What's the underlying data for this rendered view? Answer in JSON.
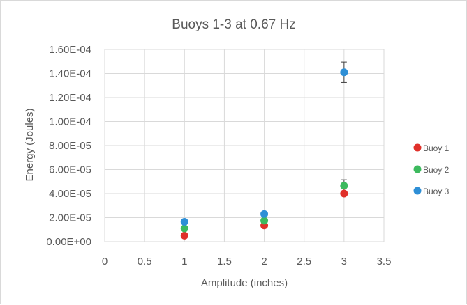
{
  "chart_data": {
    "type": "scatter",
    "title": "Buoys 1-3 at 0.67 Hz",
    "xlabel": "Amplitude (inches)",
    "ylabel": "Energy (Joules)",
    "xlim": [
      0,
      3.5
    ],
    "ylim": [
      0,
      0.00016
    ],
    "x_ticks": [
      "0",
      "0.5",
      "1",
      "1.5",
      "2",
      "2.5",
      "3",
      "3.5"
    ],
    "y_ticks": [
      "0.00E+00",
      "2.00E-05",
      "4.00E-05",
      "6.00E-05",
      "8.00E-05",
      "1.00E-04",
      "1.20E-04",
      "1.40E-04",
      "1.60E-04"
    ],
    "grid": "vertical and horizontal",
    "legend_position": "right",
    "series": [
      {
        "name": "Buoy 1",
        "color": "#e0302a",
        "points": [
          {
            "x": 1,
            "y": 5e-06
          },
          {
            "x": 2,
            "y": 1.35e-05
          },
          {
            "x": 3,
            "y": 4e-05,
            "err": 2e-06
          }
        ]
      },
      {
        "name": "Buoy 2",
        "color": "#3dba5e",
        "points": [
          {
            "x": 1,
            "y": 1.1e-05
          },
          {
            "x": 2,
            "y": 1.75e-05
          },
          {
            "x": 3,
            "y": 4.65e-05,
            "err": 5e-06
          }
        ]
      },
      {
        "name": "Buoy 3",
        "color": "#2e8fd6",
        "points": [
          {
            "x": 1,
            "y": 1.65e-05
          },
          {
            "x": 2,
            "y": 2.3e-05
          },
          {
            "x": 3,
            "y": 0.000141,
            "err": 8.5e-06
          }
        ]
      }
    ]
  }
}
